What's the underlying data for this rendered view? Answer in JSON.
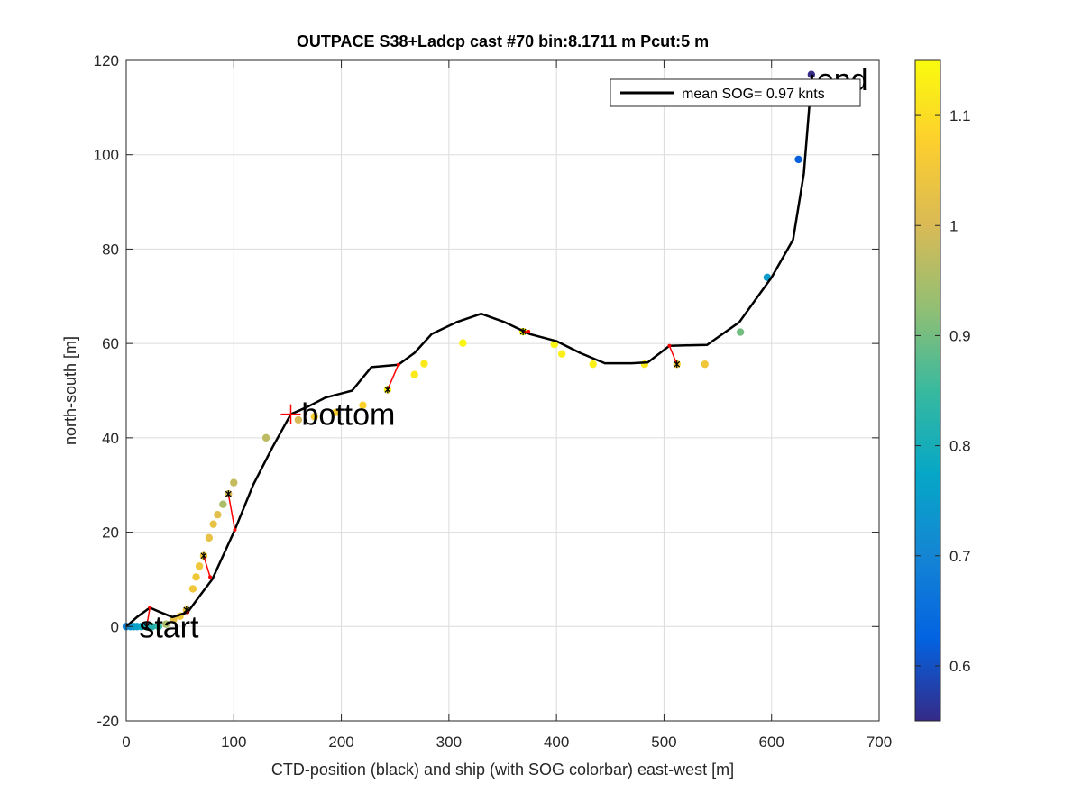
{
  "chart_data": {
    "type": "scatter",
    "title": "OUTPACE S38+Ladcp cast #70 bin:8.1711 m  Pcut:5 m",
    "xlabel": "CTD-position (black) and ship (with SOG colorbar) east-west [m]",
    "ylabel": "north-south [m]",
    "xlim": [
      0,
      700
    ],
    "ylim": [
      -20,
      120
    ],
    "xticks": [
      0,
      100,
      200,
      300,
      400,
      500,
      600,
      700
    ],
    "yticks": [
      -20,
      0,
      20,
      40,
      60,
      80,
      100,
      120
    ],
    "grid": true,
    "legend": {
      "position": "top-right",
      "entry": "mean SOG=  0.97 knts"
    },
    "colorbar": {
      "range": [
        0.55,
        1.15
      ],
      "ticks": [
        0.6,
        0.7,
        0.8,
        0.9,
        1,
        1.1
      ],
      "colormap": "parula"
    },
    "annotations": [
      {
        "text": "start",
        "x": 12,
        "y": 0
      },
      {
        "text": "bottom",
        "x": 163,
        "y": 45
      },
      {
        "text": "end",
        "x": 642,
        "y": 116
      }
    ],
    "bottom_marker": {
      "x": 153,
      "y": 45
    },
    "series": [
      {
        "role": "ctd_track",
        "x": [
          0,
          10,
          22,
          32,
          43,
          57,
          70,
          80,
          90,
          101,
          118,
          136,
          153,
          168,
          185,
          210,
          228,
          253,
          268,
          284,
          307,
          330,
          352,
          375,
          400,
          422,
          445,
          470,
          485,
          505,
          520,
          540,
          570,
          600,
          620,
          630,
          635,
          638
        ],
        "y": [
          0,
          2,
          4,
          3,
          2,
          3,
          7,
          10,
          15,
          20.5,
          30,
          38,
          45,
          46.5,
          48.5,
          50,
          55,
          55.5,
          58,
          62,
          64.5,
          66.3,
          64.5,
          62,
          60.5,
          58,
          55.8,
          55.8,
          56,
          59.5,
          59.6,
          59.7,
          64.5,
          74,
          82,
          96,
          110,
          117
        ]
      },
      {
        "role": "ship_sog",
        "x": [
          0,
          4,
          7,
          10,
          14,
          19,
          24,
          30,
          37,
          44,
          50,
          56,
          62,
          65,
          68,
          72,
          77,
          81,
          85,
          90,
          95,
          100,
          130,
          160,
          175,
          195,
          220,
          243,
          268,
          277,
          313,
          369,
          398,
          405,
          434,
          482,
          512,
          538,
          571,
          596,
          625,
          637
        ],
        "y": [
          0,
          0,
          0,
          0,
          0,
          0,
          0,
          0,
          0.5,
          1.5,
          2.2,
          3.5,
          8,
          10.5,
          12.8,
          15,
          18.8,
          21.7,
          23.7,
          25.9,
          28.1,
          30.5,
          40,
          43.8,
          44.5,
          45.4,
          46.9,
          50.2,
          53.4,
          55.7,
          60.1,
          62.5,
          59.8,
          57.8,
          55.6,
          55.6,
          55.6,
          55.6,
          62.4,
          74,
          99,
          117
        ],
        "sog_knts": [
          0.7,
          0.72,
          0.74,
          0.76,
          0.78,
          0.8,
          0.82,
          0.84,
          0.95,
          1.03,
          1.05,
          1.05,
          1.05,
          1.05,
          1.05,
          1.05,
          1.03,
          1.03,
          1.02,
          0.95,
          1.0,
          0.98,
          0.97,
          1.0,
          1.07,
          1.07,
          1.08,
          1.13,
          1.12,
          1.12,
          1.14,
          1.14,
          1.14,
          1.13,
          1.13,
          1.12,
          1.07,
          1.05,
          0.9,
          0.75,
          0.62,
          0.55
        ]
      },
      {
        "role": "offset_segments",
        "pairs": [
          {
            "ctd": [
              22,
              4
            ],
            "ship": [
              19,
              0
            ]
          },
          {
            "ctd": [
              57,
              3
            ],
            "ship": [
              56,
              3.5
            ]
          },
          {
            "ctd": [
              78,
              10.5
            ],
            "ship": [
              72,
              15
            ]
          },
          {
            "ctd": [
              101,
              20.5
            ],
            "ship": [
              95,
              28.1
            ]
          },
          {
            "ctd": [
              253,
              55.5
            ],
            "ship": [
              243,
              50.2
            ]
          },
          {
            "ctd": [
              374,
              62.5
            ],
            "ship": [
              369,
              62.5
            ]
          },
          {
            "ctd": [
              505,
              59.5
            ],
            "ship": [
              512,
              55.6
            ]
          }
        ]
      }
    ]
  }
}
